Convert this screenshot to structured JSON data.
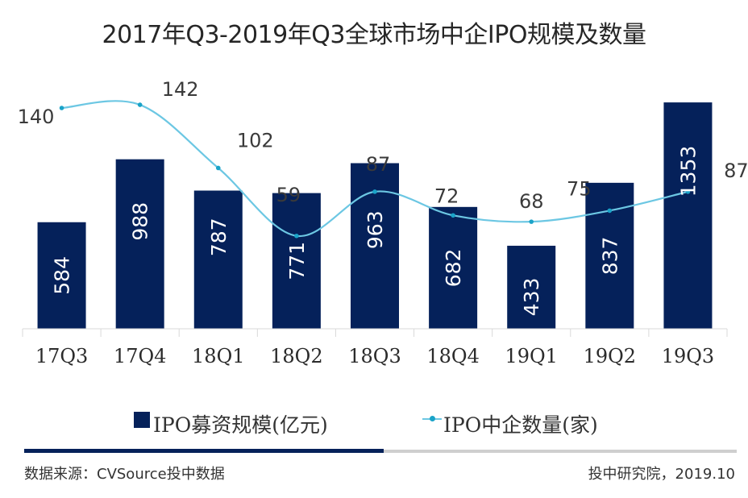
{
  "title": "2017年Q3-2019年Q3全球市场中企IPO规模及数量",
  "colors": {
    "bar": "#05215a",
    "line": "#6cc7e3",
    "marker": "#1aa3c8",
    "axis": "#d9d9d9"
  },
  "legend": {
    "bar_label": "IPO募资规模(亿元)",
    "line_label": "IPO中企数量(家)"
  },
  "footer": {
    "source": "数据来源：CVSource投中数据",
    "credit": "投中研究院，2019.10"
  },
  "chart_data": {
    "type": "bar",
    "title": "2017年Q3-2019年Q3全球市场中企IPO规模及数量",
    "xlabel": "",
    "ylabel": "",
    "categories": [
      "17Q3",
      "17Q4",
      "18Q1",
      "18Q2",
      "18Q3",
      "18Q4",
      "19Q1",
      "19Q2",
      "19Q3"
    ],
    "series": [
      {
        "name": "IPO募资规模(亿元)",
        "type": "bar",
        "values": [
          584,
          988,
          787,
          771,
          963,
          682,
          433,
          837,
          1353
        ]
      },
      {
        "name": "IPO中企数量(家)",
        "type": "line",
        "smooth": true,
        "values": [
          140,
          142,
          102,
          59,
          87,
          72,
          68,
          75,
          87
        ]
      }
    ],
    "ylim_bar": [
      -100,
      1400
    ],
    "ylim_line": [
      0,
      140
    ],
    "grid": false,
    "legend_position": "bottom"
  }
}
